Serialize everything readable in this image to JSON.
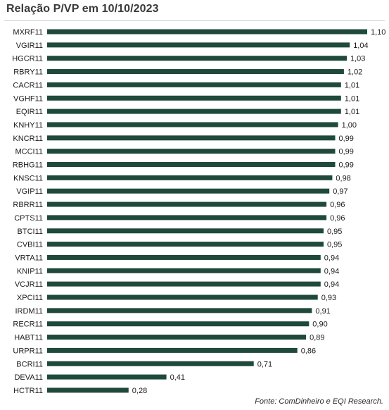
{
  "chart_data": {
    "type": "bar",
    "orientation": "horizontal",
    "title": "Relação P/VP em 10/10/2023",
    "categories": [
      "MXRF11",
      "VGIR11",
      "HGCR11",
      "RBRY11",
      "CACR11",
      "VGHF11",
      "EQIR11",
      "KNHY11",
      "KNCR11",
      "MCCI11",
      "RBHG11",
      "KNSC11",
      "VGIP11",
      "RBRR11",
      "CPTS11",
      "BTCI11",
      "CVBI11",
      "VRTA11",
      "KNIP11",
      "VCJR11",
      "XPCI11",
      "IRDM11",
      "RECR11",
      "HABT11",
      "URPR11",
      "BCRI11",
      "DEVA11",
      "HCTR11"
    ],
    "values": [
      1.1,
      1.04,
      1.03,
      1.02,
      1.01,
      1.01,
      1.01,
      1.0,
      0.99,
      0.99,
      0.99,
      0.98,
      0.97,
      0.96,
      0.96,
      0.95,
      0.95,
      0.94,
      0.94,
      0.94,
      0.93,
      0.91,
      0.9,
      0.89,
      0.86,
      0.71,
      0.41,
      0.28
    ],
    "value_labels": [
      "1,10",
      "1,04",
      "1,03",
      "1,02",
      "1,01",
      "1,01",
      "1,01",
      "1,00",
      "0,99",
      "0,99",
      "0,99",
      "0,98",
      "0,97",
      "0,96",
      "0,96",
      "0,95",
      "0,95",
      "0,94",
      "0,94",
      "0,94",
      "0,93",
      "0,91",
      "0,90",
      "0,89",
      "0,86",
      "0,71",
      "0,41",
      "0,28"
    ],
    "bar_color": "#1f4a3b",
    "grid": false,
    "legend": "none",
    "xlim": [
      0,
      1.1
    ]
  },
  "source": "Fonte: ComDinheiro e EQI Research."
}
